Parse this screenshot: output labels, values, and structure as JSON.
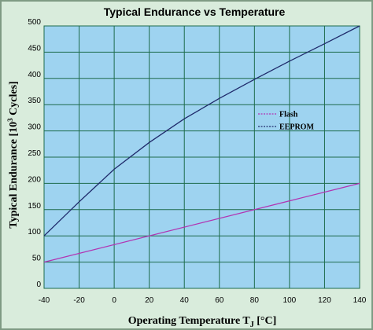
{
  "chart_data": {
    "type": "line",
    "title": "Typical Endurance vs Temperature",
    "xlabel_main": "Operating Temperature T",
    "xlabel_sub": "J",
    "xlabel_unit": " [°C]",
    "ylabel_prefix": "Typical Endurance [10",
    "ylabel_sup": "3",
    "ylabel_suffix": " Cycles]",
    "xlim": [
      -40,
      140
    ],
    "ylim": [
      0,
      500
    ],
    "x_ticks": [
      "-40",
      "-20",
      "0",
      "20",
      "40",
      "60",
      "80",
      "100",
      "120",
      "140"
    ],
    "y_ticks": [
      "0",
      "50",
      "100",
      "150",
      "200",
      "250",
      "300",
      "350",
      "400",
      "450",
      "500"
    ],
    "grid": true,
    "legend_position": "right-center",
    "series": [
      {
        "name": "Flash",
        "color": "#b233b2",
        "x": [
          -40,
          140
        ],
        "y": [
          50,
          200
        ]
      },
      {
        "name": "EEPROM",
        "color": "#1f2a6b",
        "x": [
          -40,
          -20,
          0,
          20,
          40,
          60,
          80,
          100,
          120,
          140
        ],
        "y": [
          100,
          165,
          227,
          278,
          323,
          362,
          398,
          433,
          466,
          500
        ]
      }
    ]
  },
  "colors": {
    "plot_background": "#9ed3f0",
    "grid": "#1d6b4b",
    "frame_background": "#d9ecdc"
  }
}
